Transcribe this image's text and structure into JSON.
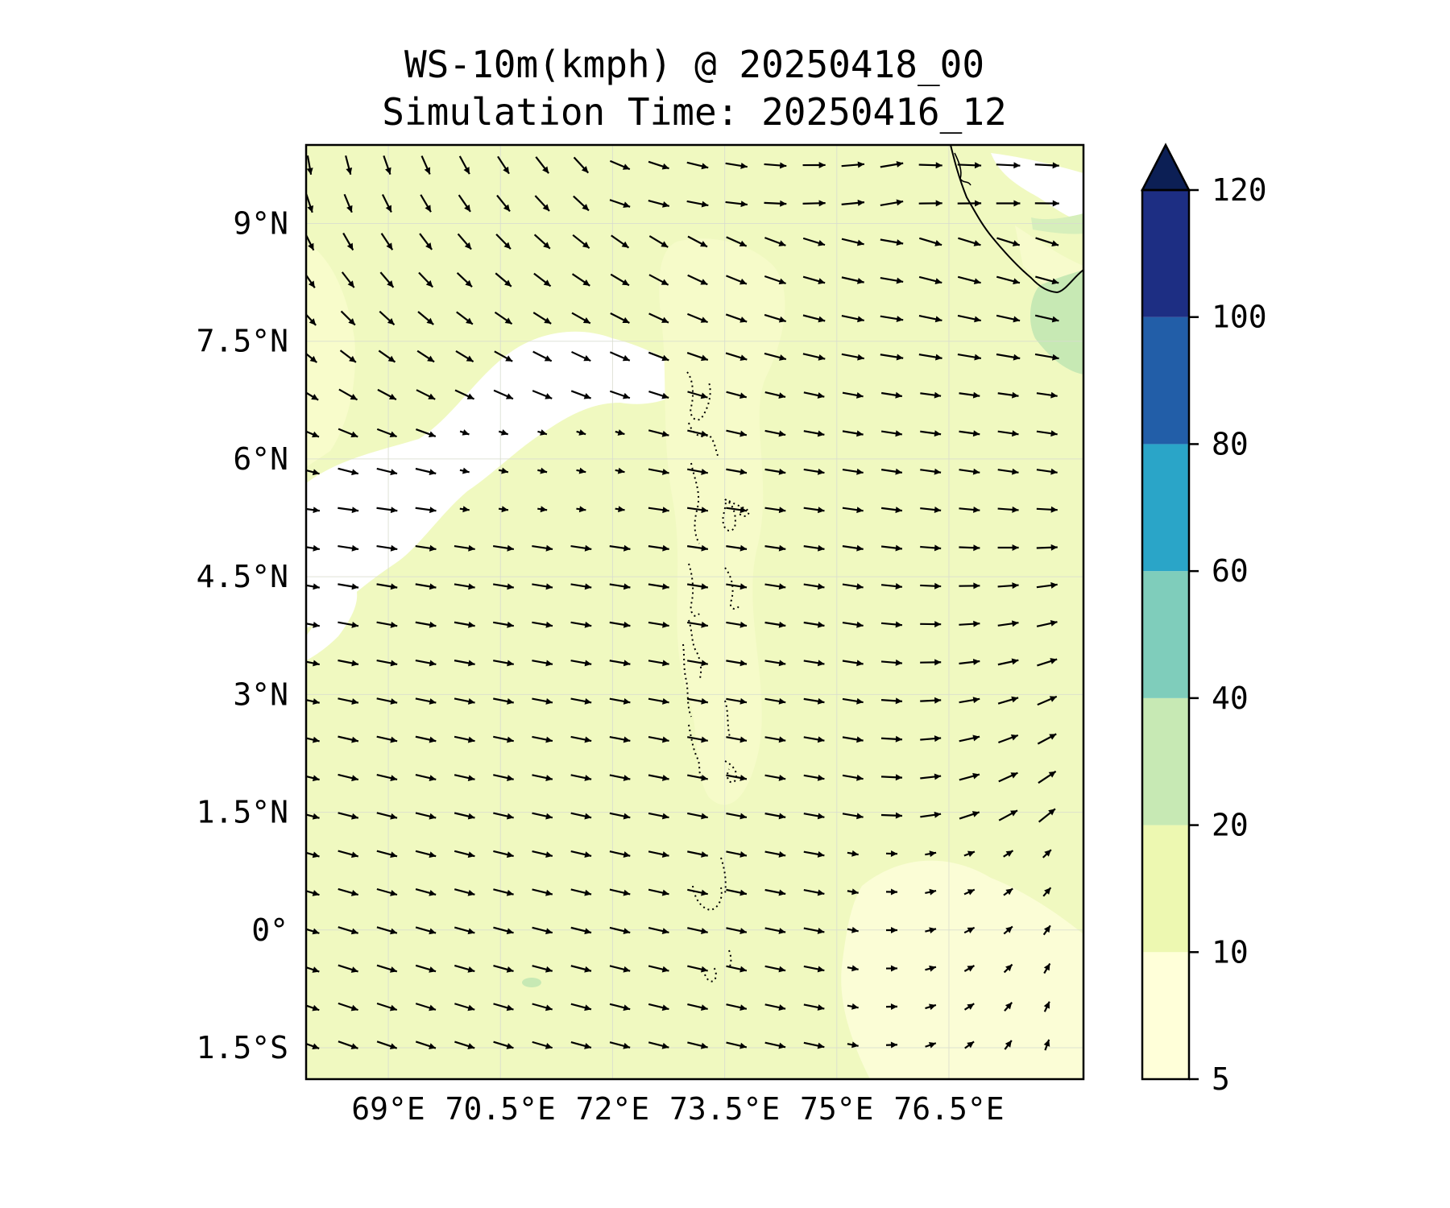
{
  "title": {
    "line1": "WS-10m(kmph) @ 20250418_00",
    "line2": "Simulation Time: 20250416_12"
  },
  "map": {
    "lon_range": [
      67.9,
      78.3
    ],
    "lat_range": [
      -1.9,
      10.0
    ],
    "x_ticks": [
      {
        "value": 69,
        "label": "69°E"
      },
      {
        "value": 70.5,
        "label": "70.5°E"
      },
      {
        "value": 72,
        "label": "72°E"
      },
      {
        "value": 73.5,
        "label": "73.5°E"
      },
      {
        "value": 75,
        "label": "75°E"
      },
      {
        "value": 76.5,
        "label": "76.5°E"
      }
    ],
    "y_ticks": [
      {
        "value": 9,
        "label": "9°N"
      },
      {
        "value": 7.5,
        "label": "7.5°N"
      },
      {
        "value": 6,
        "label": "6°N"
      },
      {
        "value": 4.5,
        "label": "4.5°N"
      },
      {
        "value": 3,
        "label": "3°N"
      },
      {
        "value": 1.5,
        "label": "1.5°N"
      },
      {
        "value": 0,
        "label": "0°"
      },
      {
        "value": -1.5,
        "label": "1.5°S"
      }
    ],
    "background_level_color": "#f0f9c0"
  },
  "colorbar": {
    "levels": [
      {
        "value": 5,
        "label": "5",
        "color": "#ffffd9"
      },
      {
        "value": 10,
        "label": "10",
        "color": "#edf8b1"
      },
      {
        "value": 20,
        "label": "20",
        "color": "#c7e9b4"
      },
      {
        "value": 40,
        "label": "40",
        "color": "#7fcdbb"
      },
      {
        "value": 60,
        "label": "60",
        "color": "#2aa5c8"
      },
      {
        "value": 80,
        "label": "80",
        "color": "#225ea8"
      },
      {
        "value": 100,
        "label": "100",
        "color": "#1d2e83"
      },
      {
        "value": 120,
        "label": "120",
        "color": "#0c1f55"
      }
    ],
    "extend": "max"
  },
  "chart_data": {
    "type": "heatmap",
    "variable": "WS-10m(kmph)",
    "valid_time": "20250418_00",
    "simulation_time": "20250416_12",
    "overlay": "wind vectors",
    "colorbar_levels": [
      5,
      10,
      20,
      40,
      60,
      80,
      100,
      120
    ]
  }
}
